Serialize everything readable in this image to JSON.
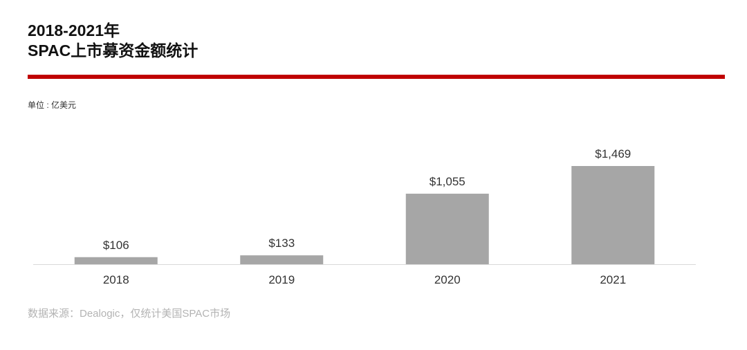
{
  "header": {
    "title_line1": "2018-2021年",
    "title_line2": "SPAC上市募资金额统计"
  },
  "unit_label": "单位 : 亿美元",
  "source": "数据来源：Dealogic，仅统计美国SPAC市场",
  "colors": {
    "accent": "#c00000",
    "bar": "#a6a6a6",
    "axis": "#d9d9d9"
  },
  "chart_data": {
    "type": "bar",
    "categories": [
      "2018",
      "2019",
      "2020",
      "2021"
    ],
    "values": [
      106,
      133,
      1055,
      1469
    ],
    "data_labels": [
      "$106",
      "$133",
      "$1,055",
      "$1,469"
    ],
    "ylim": [
      0,
      1469
    ],
    "grid": false,
    "legend": "none"
  }
}
